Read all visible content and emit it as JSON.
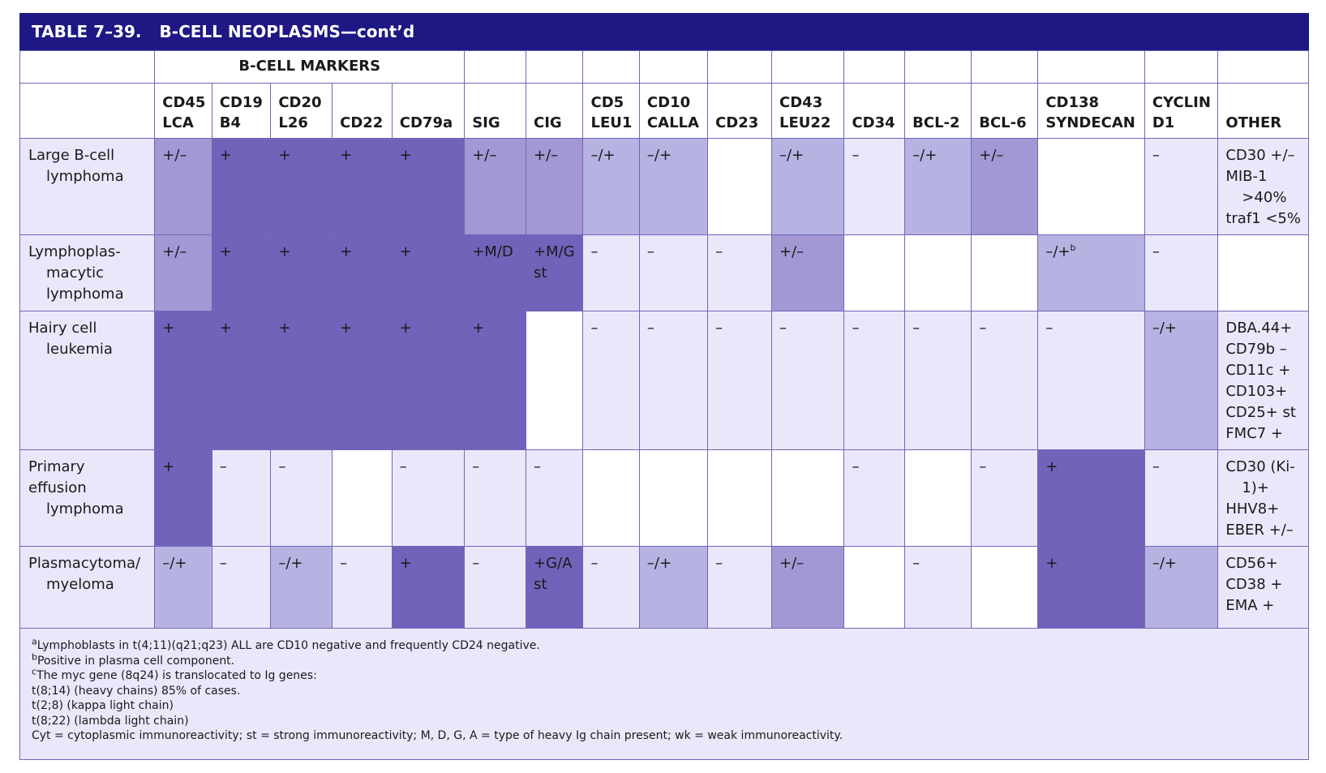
{
  "title": {
    "number": "TABLE 7–39.",
    "text": "B-CELL NEOPLASMS—cont’d"
  },
  "group_header": "B-CELL MARKERS",
  "columns": [
    [
      "CD45",
      "LCA"
    ],
    [
      "CD19",
      "B4"
    ],
    [
      "CD20",
      "L26"
    ],
    [
      "",
      "CD22"
    ],
    [
      "",
      "CD79a"
    ],
    [
      "",
      "SIG"
    ],
    [
      "",
      "CIG"
    ],
    [
      "CD5",
      "LEU1"
    ],
    [
      "CD10",
      "CALLA"
    ],
    [
      "",
      "CD23"
    ],
    [
      "CD43",
      "LEU22"
    ],
    [
      "",
      "CD34"
    ],
    [
      "",
      "BCL-2"
    ],
    [
      "",
      "BCL-6"
    ],
    [
      "CD138",
      "SYNDECAN"
    ],
    [
      "CYCLIN",
      "D1"
    ],
    [
      "",
      "OTHER"
    ]
  ],
  "rows": [
    {
      "label": [
        "Large B-cell",
        "lymphoma"
      ],
      "cells": [
        "+/–",
        "+",
        "+",
        "+",
        "+",
        "+/–",
        "+/–",
        "–/+",
        "–/+",
        "",
        "–/+",
        "–",
        "–/+",
        "+/–",
        "",
        "–"
      ],
      "shade": [
        "l3",
        "l4",
        "l4",
        "l4",
        "l4",
        "l3",
        "l3",
        "l2",
        "l2",
        "l0",
        "l2",
        "l1",
        "l2",
        "l3",
        "l0",
        "l1"
      ],
      "other": [
        "CD30 +/–",
        "MIB-1",
        ">40%",
        "traf1 <5%"
      ],
      "other_shade": "l1"
    },
    {
      "label": [
        "Lymphoplas-",
        "macytic",
        "lymphoma"
      ],
      "cells": [
        "+/–",
        "+",
        "+",
        "+",
        "+",
        "+M/D",
        "+M/G st",
        "–",
        "–",
        "–",
        "+/–",
        "",
        "",
        "",
        "–/+",
        "–"
      ],
      "shade": [
        "l3",
        "l4",
        "l4",
        "l4",
        "l4",
        "l4",
        "l4",
        "l1",
        "l1",
        "l1",
        "l3",
        "l0",
        "l0",
        "l0",
        "l2",
        "l1"
      ],
      "other": [],
      "other_shade": "l0"
    },
    {
      "label": [
        "Hairy cell",
        "leukemia"
      ],
      "cells": [
        "+",
        "+",
        "+",
        "+",
        "+",
        "+",
        "",
        "–",
        "–",
        "–",
        "–",
        "–",
        "–",
        "–",
        "–",
        "–/+"
      ],
      "shade": [
        "l4",
        "l4",
        "l4",
        "l4",
        "l4",
        "l4",
        "l0",
        "l1",
        "l1",
        "l1",
        "l1",
        "l1",
        "l1",
        "l1",
        "l1",
        "l2"
      ],
      "other": [
        "DBA.44+",
        "CD79b –",
        "CD11c +",
        "CD103+",
        "CD25+ st",
        "FMC7 +"
      ],
      "other_shade": "l1"
    },
    {
      "label": [
        "Primary effusion",
        "lymphoma"
      ],
      "cells": [
        "+",
        "–",
        "–",
        "",
        "–",
        "–",
        "–",
        "",
        "",
        "",
        "",
        "–",
        "",
        "–",
        "+",
        "–"
      ],
      "shade": [
        "l4",
        "l1",
        "l1",
        "l0",
        "l1",
        "l1",
        "l1",
        "l0",
        "l0",
        "l0",
        "l0",
        "l1",
        "l0",
        "l1",
        "l4",
        "l1"
      ],
      "other": [
        "CD30 (Ki-",
        "1)+",
        "HHV8+",
        "EBER +/–"
      ],
      "other_shade": "l1"
    },
    {
      "label": [
        "Plasmacytoma/",
        "myeloma"
      ],
      "cells": [
        "–/+",
        "–",
        "–/+",
        "–",
        "+",
        "–",
        "+G/A st",
        "–",
        "–/+",
        "–",
        "+/–",
        "",
        "–",
        "",
        "+",
        "–/+"
      ],
      "shade": [
        "l2",
        "l1",
        "l2",
        "l1",
        "l4",
        "l1",
        "l4",
        "l1",
        "l2",
        "l1",
        "l3",
        "l0",
        "l1",
        "l0",
        "l4",
        "l2"
      ],
      "other": [
        "CD56+",
        "CD38 +",
        "EMA +"
      ],
      "other_shade": "l1"
    }
  ],
  "superscript_b": "b",
  "footnotes": [
    {
      "sup": "a",
      "text": "Lymphoblasts in t(4;11)(q21;q23) ALL are CD10 negative and frequently CD24 negative."
    },
    {
      "sup": "b",
      "text": "Positive in plasma cell component."
    },
    {
      "sup": "c",
      "text": "The myc gene (8q24) is translocated to Ig genes:"
    },
    {
      "sup": "",
      "text": "t(8;14) (heavy chains) 85% of cases."
    },
    {
      "sup": "",
      "text": "t(2;8) (kappa light chain)"
    },
    {
      "sup": "",
      "text": "t(8;22) (lambda light chain)"
    },
    {
      "sup": "",
      "text": "Cyt = cytoplasmic immunoreactivity; st = strong immunoreactivity; M, D, G, A = type of heavy Ig chain present; wk = weak immunoreactivity."
    }
  ]
}
